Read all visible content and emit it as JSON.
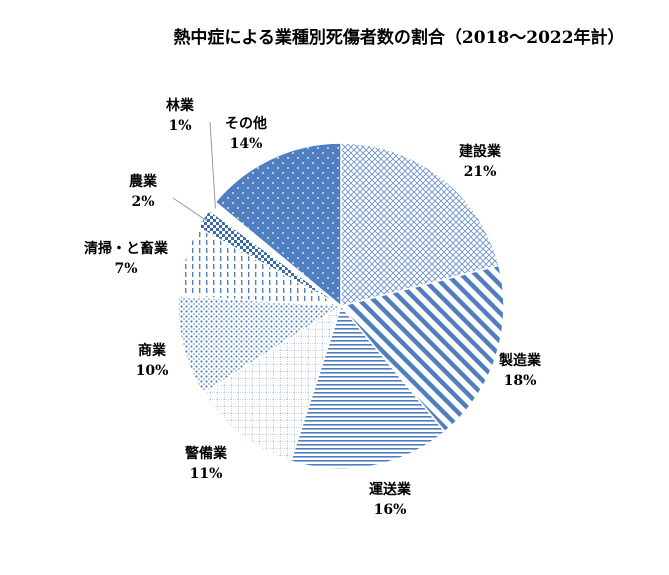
{
  "chart_data": {
    "type": "pie",
    "title": "熱中症による業種別死傷者数の割合（2018～2022年計）",
    "start_angle_deg": 0,
    "direction": "clockwise",
    "slices": [
      {
        "label": "建設業",
        "value": 21,
        "display": "21%",
        "pattern": "crosshatch"
      },
      {
        "label": "製造業",
        "value": 18,
        "display": "18%",
        "pattern": "diag-stripes"
      },
      {
        "label": "運送業",
        "value": 16,
        "display": "16%",
        "pattern": "horiz-stripes"
      },
      {
        "label": "警備業",
        "value": 11,
        "display": "11%",
        "pattern": "grid"
      },
      {
        "label": "商業",
        "value": 10,
        "display": "10%",
        "pattern": "dots"
      },
      {
        "label": "清掃・と畜業",
        "value": 7,
        "display": "7%",
        "pattern": "vert-dashes"
      },
      {
        "label": "農業",
        "value": 2,
        "display": "2%",
        "pattern": "checker"
      },
      {
        "label": "林業",
        "value": 1,
        "display": "1%",
        "pattern": "white"
      },
      {
        "label": "その他",
        "value": 14,
        "display": "14%",
        "pattern": "solid-dots"
      }
    ],
    "colors": {
      "accent": "#4f7fc1",
      "accent_dark": "#3b6aa9",
      "line": "#5a7fb8"
    }
  }
}
